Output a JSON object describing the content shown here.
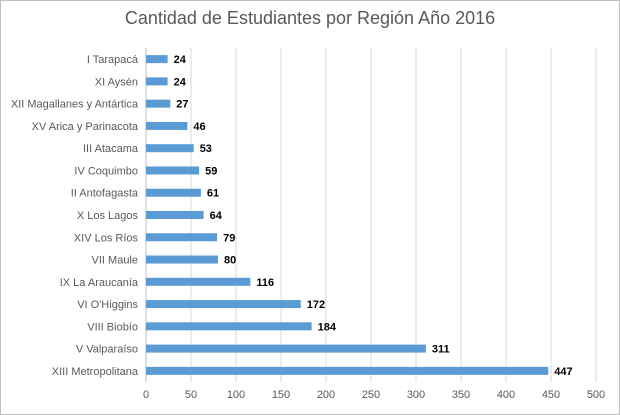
{
  "chart_data": {
    "type": "bar",
    "orientation": "horizontal",
    "title": "Cantidad de Estudiantes por Región Año 2016",
    "xlabel": "",
    "ylabel": "",
    "categories": [
      "I Tarapacá",
      "XI Aysén",
      "XII Magallanes y Antártica",
      "XV Arica y Parinacota",
      "III Atacama",
      "IV Coquimbo",
      "II Antofagasta",
      "X Los Lagos",
      "XIV Los Ríos",
      "VII Maule",
      "IX La Araucanía",
      "VI O'Higgins",
      "VIII Biobío",
      "V Valparaíso",
      "XIII Metropolitana"
    ],
    "values": [
      24,
      24,
      27,
      46,
      53,
      59,
      61,
      64,
      79,
      80,
      116,
      172,
      184,
      311,
      447
    ],
    "xlim": [
      0,
      500
    ],
    "x_ticks": [
      0,
      50,
      100,
      150,
      200,
      250,
      300,
      350,
      400,
      450,
      500
    ],
    "grid": "vertical",
    "legend": "none",
    "data_labels": true,
    "bar_color": "#5b9bd5"
  }
}
